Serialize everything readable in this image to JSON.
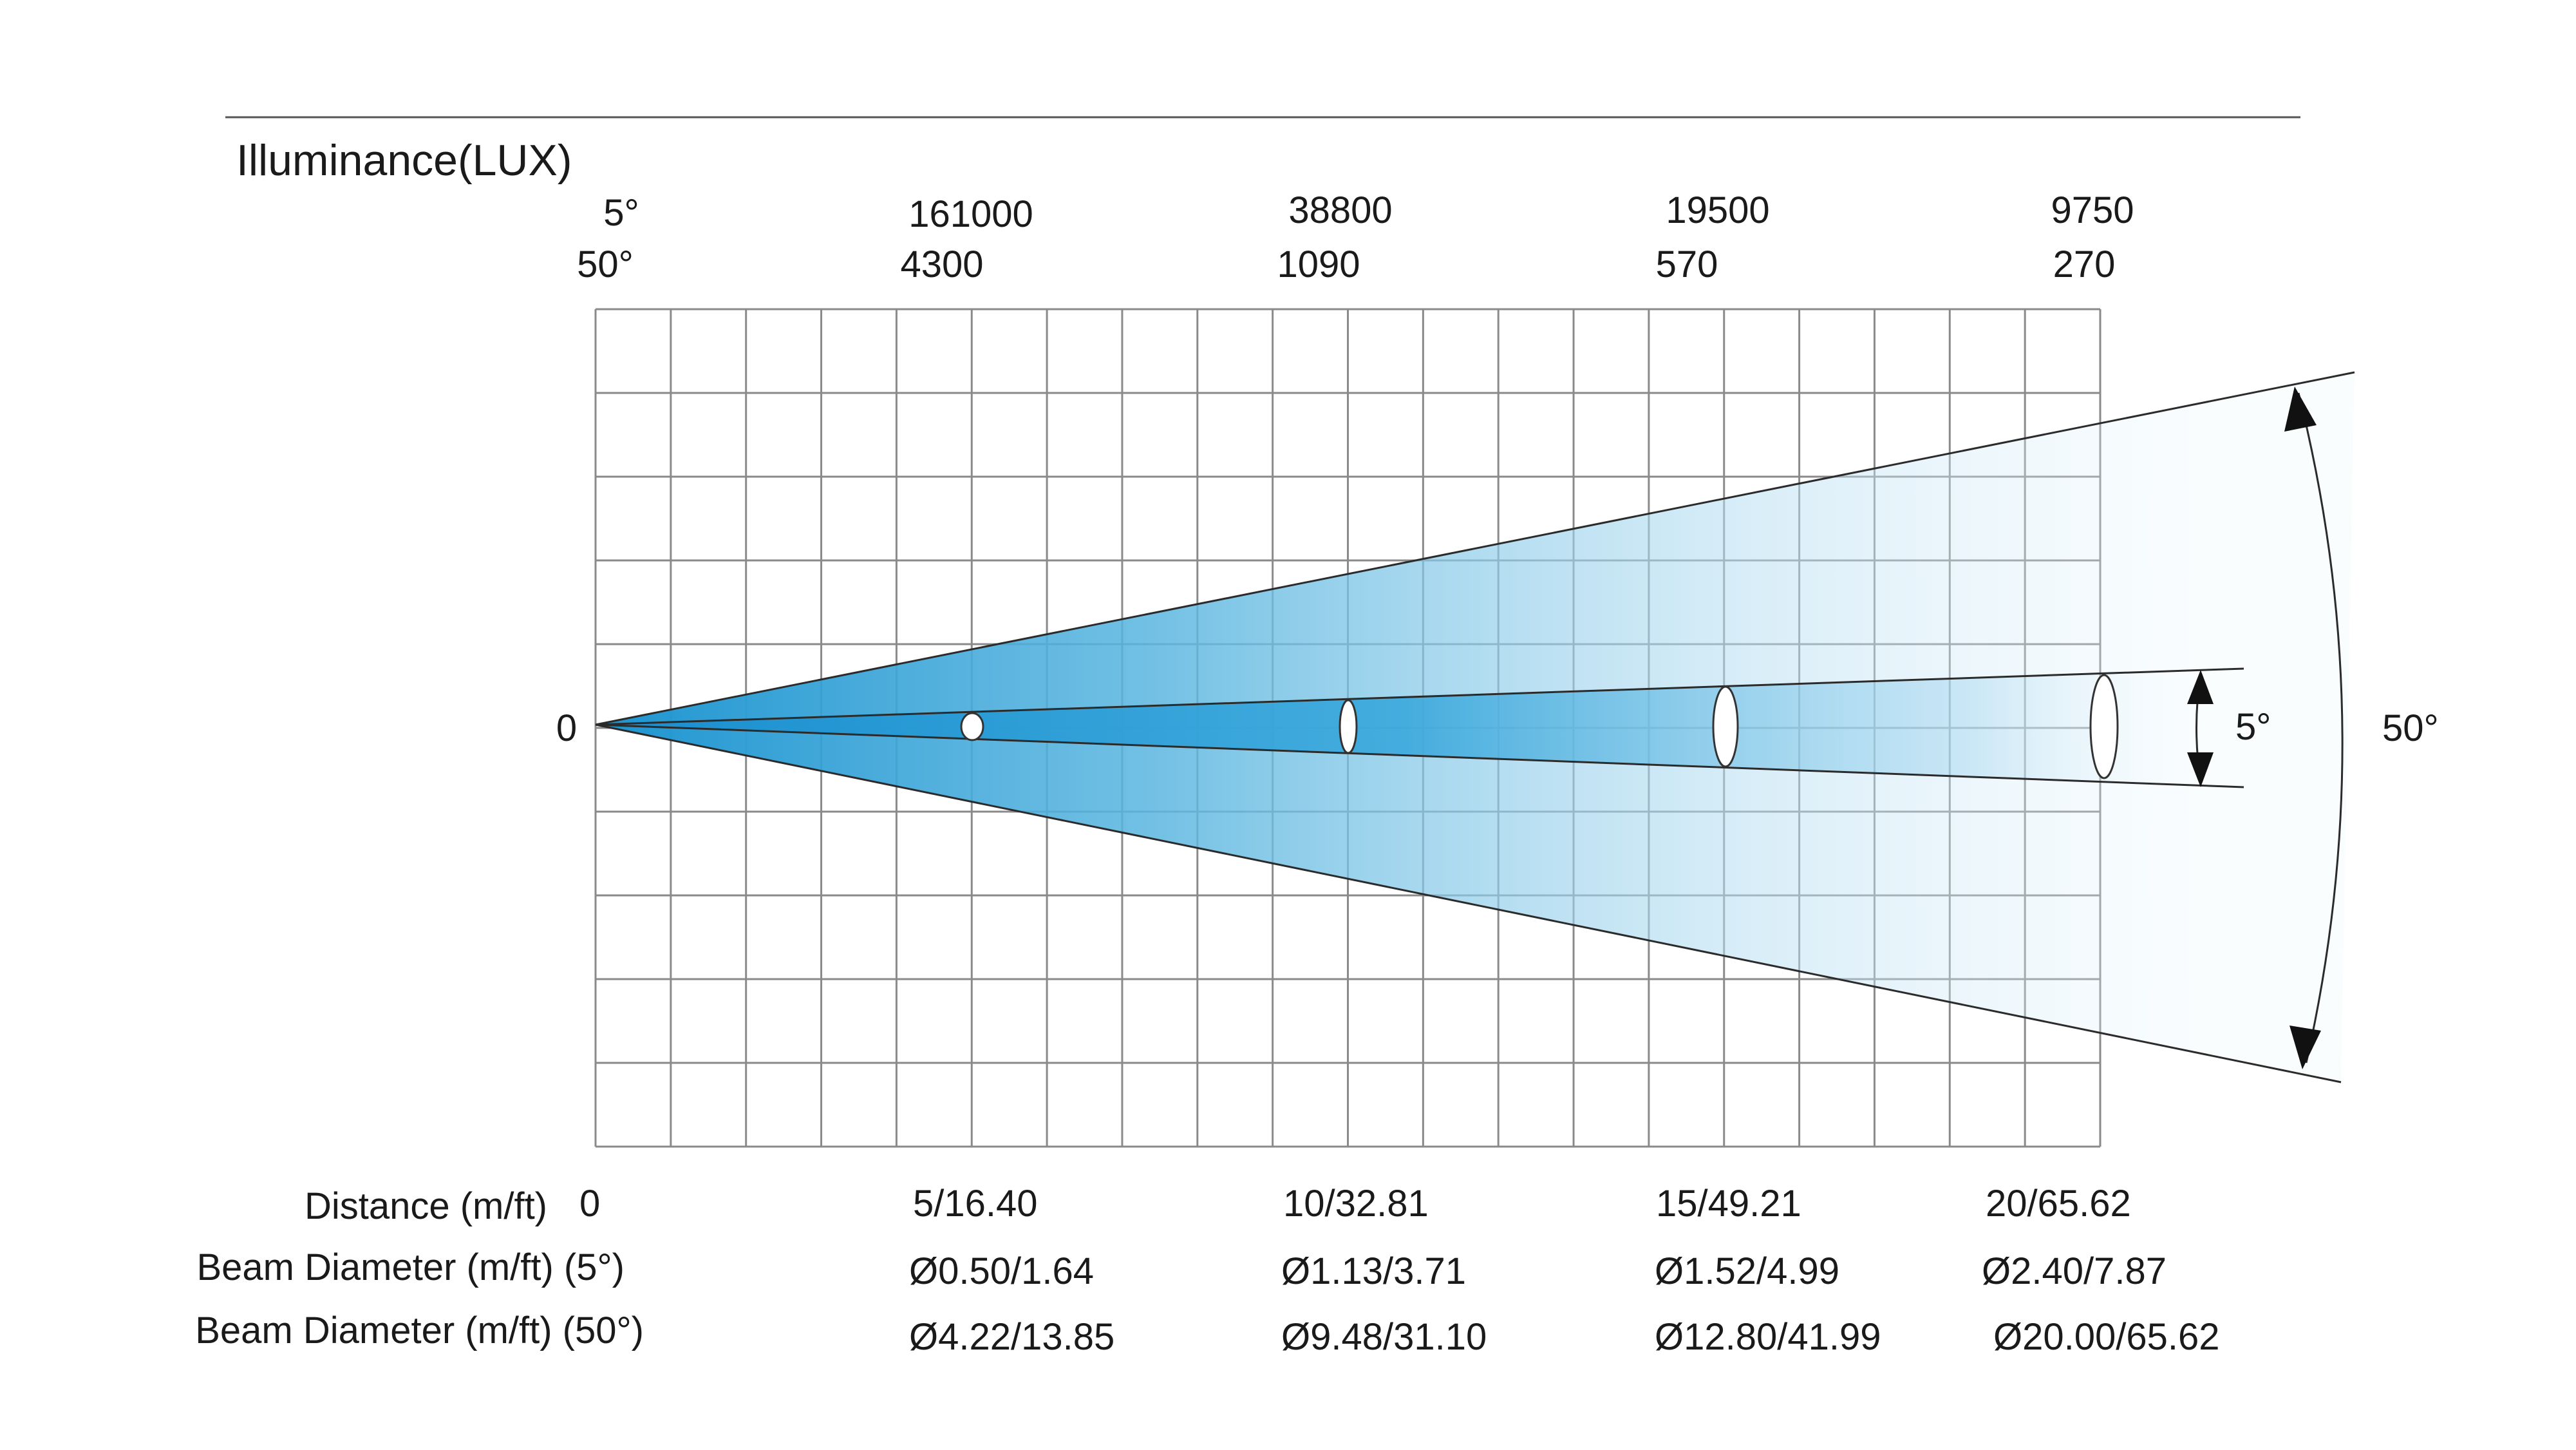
{
  "title": "Illuminance(LUX)",
  "beam_angles": [
    "5°",
    "50°"
  ],
  "illuminance": {
    "narrow": [
      "161000",
      "38800",
      "19500",
      "9750"
    ],
    "wide": [
      "4300",
      "1090",
      "570",
      "270"
    ]
  },
  "origin_label": "0",
  "angle_labels": {
    "narrow": "5°",
    "wide": "50°"
  },
  "rows": [
    {
      "label": "Distance (m/ft)",
      "values": [
        "0",
        "5/16.40",
        "10/32.81",
        "15/49.21",
        "20/65.62"
      ]
    },
    {
      "label": "Beam  Diameter (m/ft)  (5°)",
      "values": [
        "Ø0.50/1.64",
        "Ø1.13/3.71",
        "Ø1.52/4.99",
        "Ø2.40/7.87"
      ]
    },
    {
      "label": "Beam  Diameter (m/ft)  (50°)",
      "values": [
        "Ø4.22/13.85",
        "Ø9.48/31.10",
        "Ø12.80/41.99",
        "Ø20.00/65.62"
      ]
    }
  ],
  "colors": {
    "beam": "#2a9fd6",
    "grid": "#8a8a8a",
    "line": "#2b2b2b"
  }
}
